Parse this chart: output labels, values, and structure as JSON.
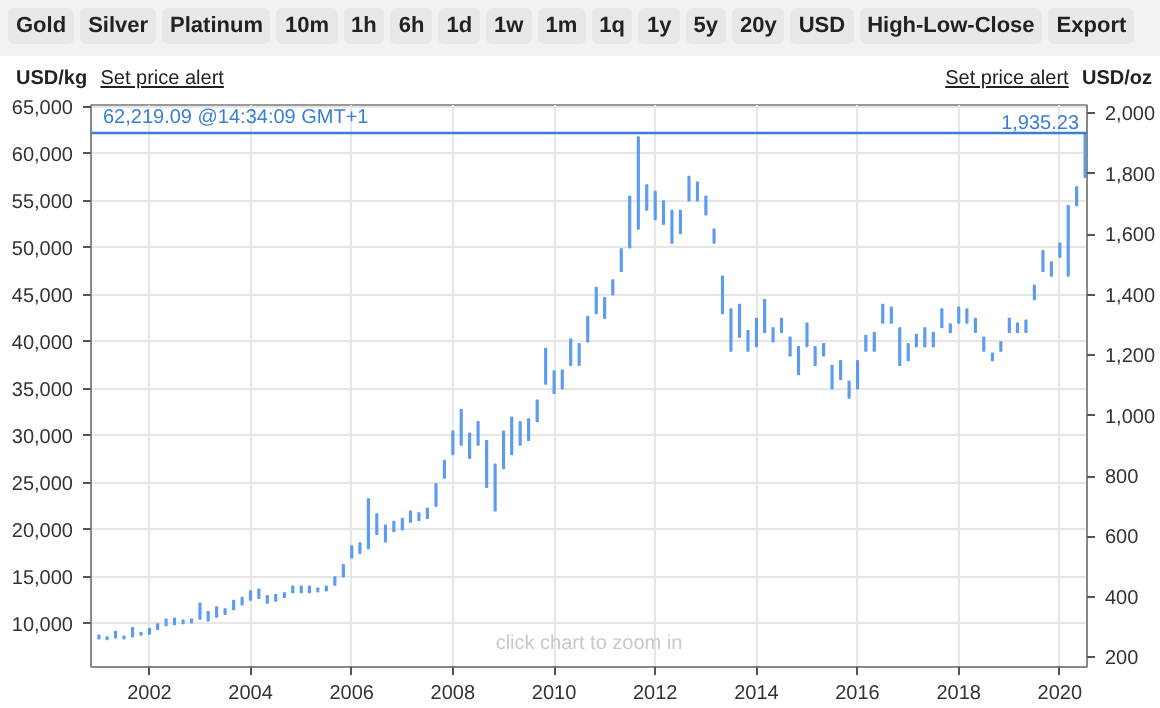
{
  "chart_data": [
    {
      "type": "other",
      "annotations": [
        "Gold",
        "Silver",
        "Platinum",
        "10m",
        "1h",
        "6h",
        "1d",
        "1w",
        "1m",
        "1q",
        "1y",
        "5y",
        "20y",
        "USD",
        "High-Low-Close",
        "Export"
      ]
    },
    {
      "type": "bar",
      "ylabel": "USD/kg",
      "y2label": "USD/oz",
      "annotations": [
        "Set price alert",
        "Set price alert",
        "click chart to zoom in",
        {
          "text": "1,935.23",
          "x": "2020-07-15",
          "y": 62219.09
        }
      ],
      "x": [
        "2001-01",
        "2001-03",
        "2001-05",
        "2001-07",
        "2001-09",
        "2001-11",
        "2002-01",
        "2002-03",
        "2002-05",
        "2002-07",
        "2002-09",
        "2002-11",
        "2003-01",
        "2003-03",
        "2003-05",
        "2003-07",
        "2003-09",
        "2003-11",
        "2004-01",
        "2004-03",
        "2004-05",
        "2004-07",
        "2004-09",
        "2004-11",
        "2005-01",
        "2005-03",
        "2005-05",
        "2005-07",
        "2005-09",
        "2005-11",
        "2006-01",
        "2006-03",
        "2006-05",
        "2006-07",
        "2006-09",
        "2006-11",
        "2007-01",
        "2007-03",
        "2007-05",
        "2007-07",
        "2007-09",
        "2007-11",
        "2008-01",
        "2008-03",
        "2008-05",
        "2008-07",
        "2008-09",
        "2008-11",
        "2009-01",
        "2009-03",
        "2009-05",
        "2009-07",
        "2009-09",
        "2009-11",
        "2010-01",
        "2010-03",
        "2010-05",
        "2010-07",
        "2010-09",
        "2010-11",
        "2011-01",
        "2011-03",
        "2011-05",
        "2011-07",
        "2011-09",
        "2011-11",
        "2012-01",
        "2012-03",
        "2012-05",
        "2012-07",
        "2012-09",
        "2012-11",
        "2013-01",
        "2013-03",
        "2013-05",
        "2013-07",
        "2013-09",
        "2013-11",
        "2014-01",
        "2014-03",
        "2014-05",
        "2014-07",
        "2014-09",
        "2014-11",
        "2015-01",
        "2015-03",
        "2015-05",
        "2015-07",
        "2015-09",
        "2015-11",
        "2016-01",
        "2016-03",
        "2016-05",
        "2016-07",
        "2016-09",
        "2016-11",
        "2017-01",
        "2017-03",
        "2017-05",
        "2017-07",
        "2017-09",
        "2017-11",
        "2018-01",
        "2018-03",
        "2018-05",
        "2018-07",
        "2018-09",
        "2018-11",
        "2019-01",
        "2019-03",
        "2019-05",
        "2019-07",
        "2019-09",
        "2019-11",
        "2020-01",
        "2020-03",
        "2020-05",
        "2020-07"
      ],
      "base": [
        8400,
        8300,
        8500,
        8400,
        8600,
        8800,
        8900,
        9400,
        9800,
        9900,
        10000,
        10100,
        10500,
        10300,
        10700,
        11000,
        11500,
        12000,
        12500,
        12700,
        12200,
        12400,
        12800,
        13300,
        13300,
        13300,
        13400,
        13500,
        14100,
        15000,
        17000,
        17500,
        18000,
        19500,
        18700,
        19800,
        20000,
        20800,
        21000,
        21200,
        22500,
        25500,
        28000,
        29000,
        27600,
        29000,
        24500,
        22000,
        26500,
        28000,
        29000,
        29500,
        31500,
        35500,
        34500,
        35000,
        37500,
        37500,
        40000,
        43000,
        42500,
        45000,
        47500,
        50000,
        52000,
        54000,
        53000,
        52500,
        50500,
        51500,
        55000,
        55000,
        53500,
        50500,
        43000,
        39000,
        40500,
        39000,
        39500,
        41000,
        40000,
        41000,
        38500,
        36500,
        39500,
        37500,
        38500,
        35000,
        36000,
        34000,
        35000,
        39000,
        39000,
        42000,
        42000,
        37500,
        38000,
        39500,
        39500,
        39500,
        41500,
        41000,
        42000,
        42000,
        41000,
        39000,
        38000,
        39000,
        41000,
        41000,
        41000,
        44500,
        47500,
        47000,
        49000,
        47000,
        54500,
        57500
      ],
      "values": [
        400,
        300,
        700,
        300,
        1000,
        300,
        600,
        600,
        700,
        700,
        400,
        400,
        1700,
        1000,
        1100,
        600,
        1000,
        800,
        1000,
        1000,
        800,
        700,
        500,
        700,
        700,
        700,
        400,
        500,
        900,
        1300,
        1300,
        1100,
        5300,
        2200,
        1800,
        1100,
        1200,
        1200,
        800,
        1100,
        2400,
        1900,
        2500,
        3800,
        2700,
        2500,
        5000,
        5000,
        4000,
        4000,
        2500,
        2300,
        2300,
        3800,
        2400,
        2000,
        2800,
        2300,
        2700,
        2800,
        2200,
        1600,
        2400,
        5500,
        9800,
        2700,
        3000,
        2500,
        3500,
        2500,
        2600,
        2000,
        2000,
        1500,
        4000,
        4500,
        3500,
        2200,
        3000,
        3500,
        1500,
        1500,
        2000,
        3000,
        2500,
        2000,
        1300,
        2500,
        2000,
        1800,
        3000,
        1700,
        2000,
        2000,
        1700,
        4000,
        1800,
        1300,
        2000,
        1500,
        2000,
        900,
        1700,
        1500,
        1500,
        1500,
        800,
        1000,
        1500,
        1000,
        1300,
        1500,
        2200,
        1500,
        1500,
        7500,
        2000,
        4700
      ],
      "color": "#5b9bf0",
      "xlim": [
        "2000-11-05",
        "2020-07-15"
      ],
      "xticks": [
        "2002",
        "2004",
        "2006",
        "2008",
        "2010",
        "2012",
        "2014",
        "2016",
        "2018",
        "2020"
      ],
      "ylim": [
        5400,
        65200
      ],
      "yticks": [
        {
          "value": 10000,
          "label": "10,000"
        },
        {
          "value": 15000,
          "label": "15,000"
        },
        {
          "value": 20000,
          "label": "20,000"
        },
        {
          "value": 25000,
          "label": "25,000"
        },
        {
          "value": 30000,
          "label": "30,000"
        },
        {
          "value": 35000,
          "label": "35,000"
        },
        {
          "value": 40000,
          "label": "40,000"
        },
        {
          "value": 45000,
          "label": "45,000"
        },
        {
          "value": 50000,
          "label": "50,000"
        },
        {
          "value": 55000,
          "label": "55,000"
        },
        {
          "value": 60000,
          "label": "60,000"
        },
        {
          "value": 65000,
          "label": "65,000"
        }
      ],
      "y2lim": [
        168,
        2028
      ],
      "y2ticks": [
        200,
        400,
        600,
        800,
        {
          "value": 1000,
          "label": "1,000"
        },
        {
          "value": 1200,
          "label": "1,200"
        },
        {
          "value": 1400,
          "label": "1,400"
        },
        {
          "value": 1600,
          "label": "1,600"
        },
        {
          "value": 1800,
          "label": "1,800"
        },
        {
          "value": 2000,
          "label": "2,000"
        }
      ],
      "ref_lines": [
        {
          "axis": "y",
          "value": 62219.09,
          "label": "62,219.09 @14:34:09 GMT+1",
          "color": "#3a7fd5"
        }
      ],
      "grid": true
    }
  ]
}
